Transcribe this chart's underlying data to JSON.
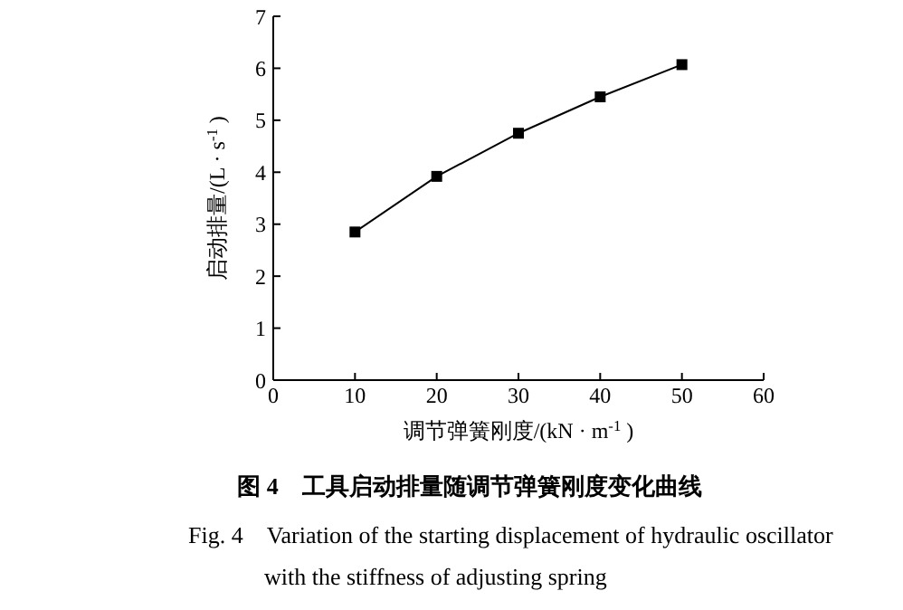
{
  "chart_data": {
    "type": "line",
    "title": "图 4　工具启动排量随调节弹簧刚度变化曲线",
    "annotations": [
      "Fig. 4　Variation of the starting displacement of hydraulic oscillator with the stiffness of adjusting spring"
    ],
    "xlabel": "调节弹簧刚度/(kN · m$^{-1}$)",
    "ylabel": "启动排量/(L · s$^{-1}$)",
    "x": [
      10,
      20,
      30,
      40,
      50
    ],
    "series": [
      {
        "color": "#000000",
        "values": [
          2.85,
          3.92,
          4.75,
          5.45,
          6.07
        ]
      }
    ],
    "xlim": [
      0,
      60
    ],
    "xticks": [
      0,
      10,
      20,
      30,
      40,
      50,
      60
    ],
    "ylim": [
      0,
      7
    ],
    "yticks": [
      0,
      1,
      2,
      3,
      4,
      5,
      6,
      7
    ],
    "marker": "square",
    "line_style": "solid",
    "grid": false,
    "legend": false
  }
}
